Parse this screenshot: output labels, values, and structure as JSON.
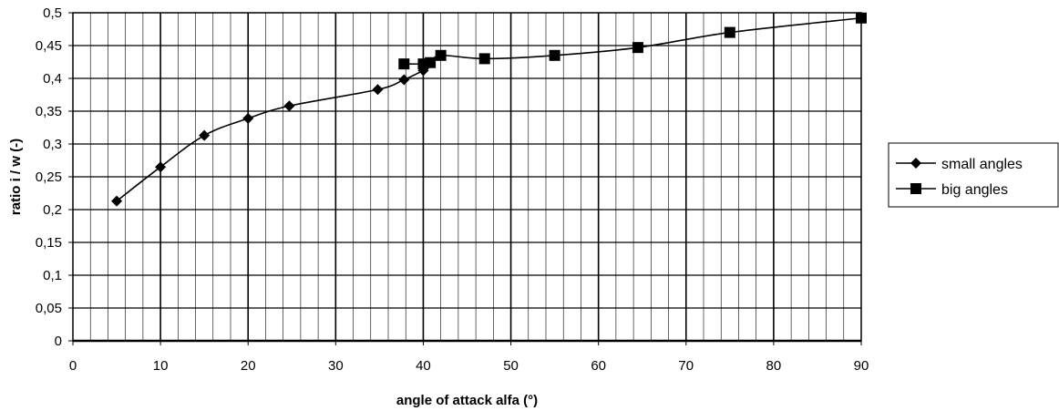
{
  "chart_data": {
    "type": "line",
    "title": "",
    "xlabel": "angle of attack alfa (°)",
    "ylabel": "ratio i / w (-)",
    "xlim": [
      0,
      90
    ],
    "ylim": [
      0,
      0.5
    ],
    "x_ticks": [
      "0",
      "10",
      "20",
      "30",
      "40",
      "50",
      "60",
      "70",
      "80",
      "90"
    ],
    "y_ticks": [
      "0",
      "0,05",
      "0,1",
      "0,15",
      "0,2",
      "0,25",
      "0,3",
      "0,35",
      "0,4",
      "0,45",
      "0,5"
    ],
    "grid": true,
    "legend_position": "right",
    "series": [
      {
        "name": "small angles",
        "marker": "diamond",
        "color": "#000000",
        "points": [
          [
            5,
            0.213
          ],
          [
            10,
            0.265
          ],
          [
            15,
            0.313
          ],
          [
            20,
            0.339
          ],
          [
            24.7,
            0.358
          ],
          [
            34.8,
            0.383
          ],
          [
            37.8,
            0.398
          ],
          [
            40,
            0.412
          ]
        ]
      },
      {
        "name": "big angles",
        "marker": "square",
        "color": "#000000",
        "points": [
          [
            37.8,
            0.422
          ],
          [
            40,
            0.422
          ],
          [
            40.8,
            0.424
          ],
          [
            42,
            0.435
          ],
          [
            47,
            0.43
          ],
          [
            55,
            0.435
          ],
          [
            64.5,
            0.447
          ],
          [
            75,
            0.47
          ],
          [
            90,
            0.492
          ]
        ]
      }
    ]
  }
}
